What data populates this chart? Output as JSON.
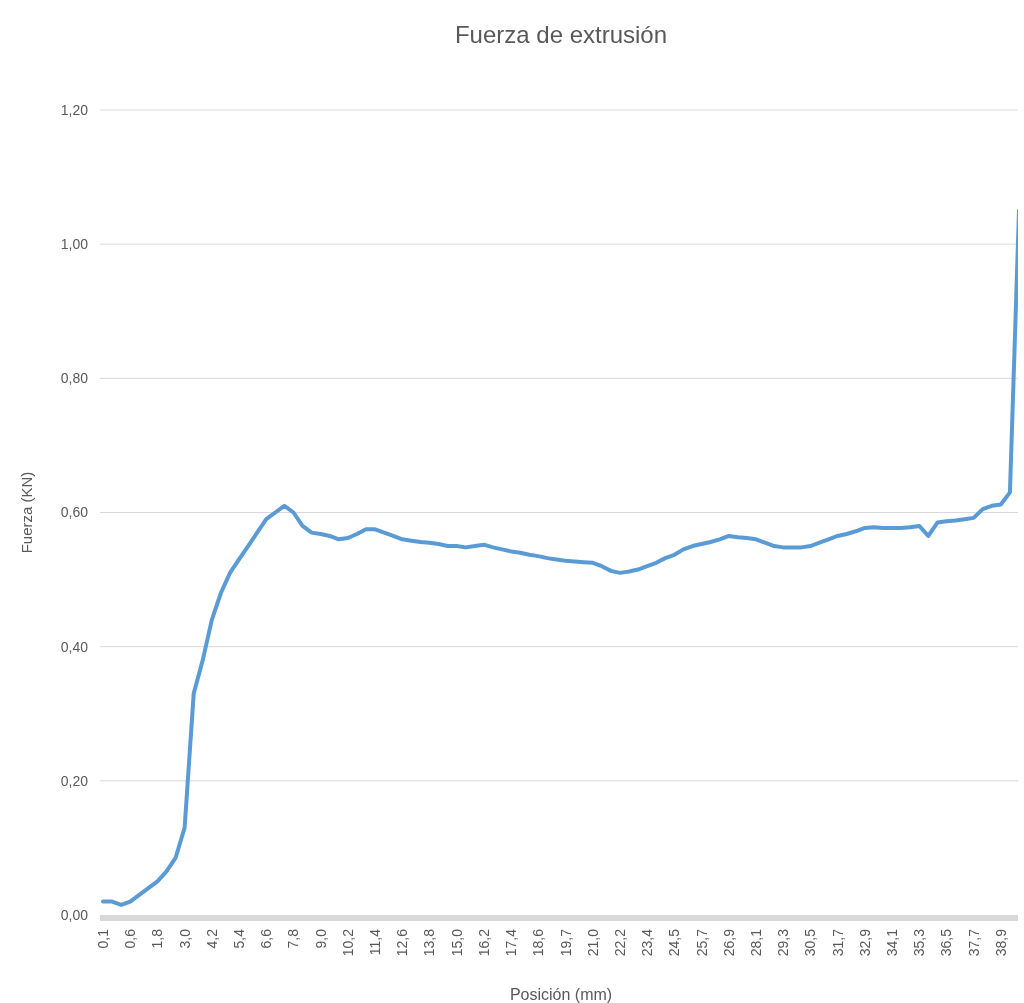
{
  "chart_data": {
    "type": "line",
    "title": "Fuerza de extrusión",
    "xlabel": "Posición (mm)",
    "ylabel": "Fuerza (KN)",
    "categories": [
      "0,1",
      null,
      null,
      "0,6",
      null,
      null,
      "1,8",
      null,
      null,
      "3,0",
      null,
      null,
      "4,2",
      null,
      null,
      "5,4",
      null,
      null,
      "6,6",
      null,
      null,
      "7,8",
      null,
      null,
      "9,0",
      null,
      null,
      "10,2",
      null,
      null,
      "11,4",
      null,
      null,
      "12,6",
      null,
      null,
      "13,8",
      null,
      null,
      "15,0",
      null,
      null,
      "16,2",
      null,
      null,
      "17,4",
      null,
      null,
      "18,6",
      null,
      null,
      "19,7",
      null,
      null,
      "21,0",
      null,
      null,
      "22,2",
      null,
      null,
      "23,4",
      null,
      null,
      "24,5",
      null,
      null,
      "25,7",
      null,
      null,
      "26,9",
      null,
      null,
      "28,1",
      null,
      null,
      "29,3",
      null,
      null,
      "30,5",
      null,
      null,
      "31,7",
      null,
      null,
      "32,9",
      null,
      null,
      "34,1",
      null,
      null,
      "35,3",
      null,
      null,
      "36,5",
      null,
      null,
      "37,7",
      null,
      null,
      "38,9",
      null,
      null
    ],
    "series": [
      {
        "color": "#5b9bd5",
        "values": [
          0.02,
          0.02,
          0.015,
          0.02,
          0.03,
          0.04,
          0.05,
          0.065,
          0.085,
          0.13,
          0.33,
          0.38,
          0.44,
          0.48,
          0.51,
          0.53,
          0.55,
          0.57,
          0.59,
          0.6,
          0.61,
          0.6,
          0.58,
          0.57,
          0.568,
          0.565,
          0.56,
          0.562,
          0.568,
          0.575,
          0.575,
          0.57,
          0.565,
          0.56,
          0.558,
          0.556,
          0.555,
          0.553,
          0.55,
          0.55,
          0.548,
          0.55,
          0.552,
          0.548,
          0.545,
          0.542,
          0.54,
          0.537,
          0.535,
          0.532,
          0.53,
          0.528,
          0.527,
          0.526,
          0.525,
          0.52,
          0.513,
          0.51,
          0.512,
          0.515,
          0.52,
          0.525,
          0.532,
          0.537,
          0.545,
          0.55,
          0.553,
          0.556,
          0.56,
          0.565,
          0.563,
          0.562,
          0.56,
          0.555,
          0.55,
          0.548,
          0.548,
          0.548,
          0.55,
          0.555,
          0.56,
          0.565,
          0.568,
          0.572,
          0.577,
          0.578,
          0.577,
          0.577,
          0.577,
          0.578,
          0.58,
          0.565,
          0.585,
          0.587,
          0.588,
          0.59,
          0.592,
          0.605,
          0.61,
          0.612,
          0.63,
          1.05
        ]
      }
    ],
    "ylim": [
      0,
      1.2
    ],
    "yticks": [
      {
        "value": 0,
        "label": "0,00"
      },
      {
        "value": 0.2,
        "label": "0,20"
      },
      {
        "value": 0.4,
        "label": "0,40"
      },
      {
        "value": 0.6,
        "label": "0,60"
      },
      {
        "value": 0.8,
        "label": "0,80"
      },
      {
        "value": 1,
        "label": "1,00"
      },
      {
        "value": 1.2,
        "label": "1,20"
      }
    ],
    "grid": "y",
    "marker": "none",
    "line_style": "solid"
  }
}
